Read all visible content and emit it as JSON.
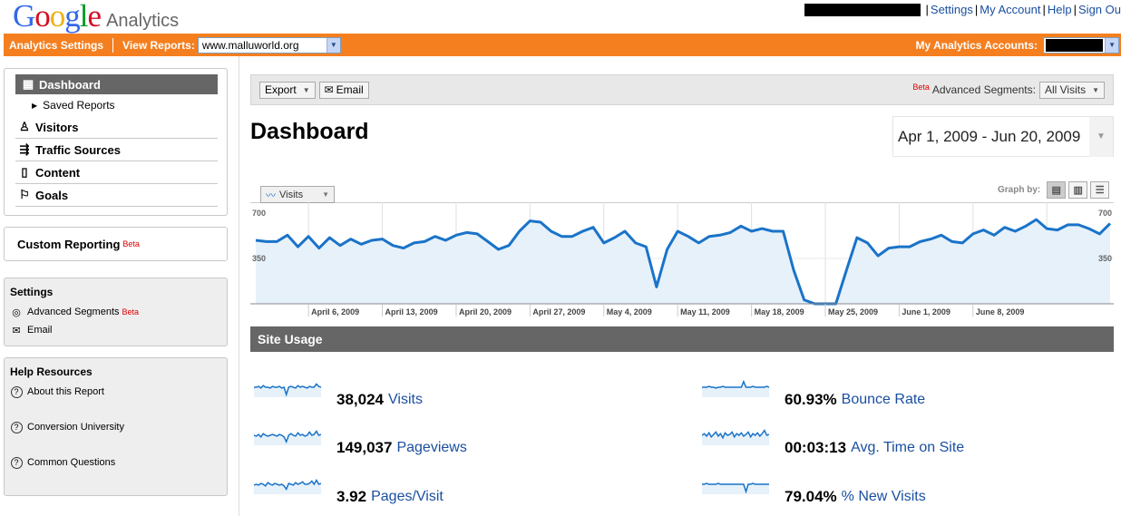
{
  "header": {
    "logo_google": "Google",
    "logo_analytics": "Analytics",
    "links": [
      "Settings",
      "My Account",
      "Help",
      "Sign Ou"
    ]
  },
  "orangebar": {
    "analytics_settings": "Analytics Settings",
    "view_reports": "View Reports:",
    "site_select": "www.malluworld.org",
    "my_accounts": "My Analytics Accounts:"
  },
  "nav": {
    "dashboard": "Dashboard",
    "saved_reports": "Saved Reports",
    "visitors": "Visitors",
    "traffic_sources": "Traffic Sources",
    "content": "Content",
    "goals": "Goals",
    "custom_reporting": "Custom Reporting",
    "beta": "Beta"
  },
  "settings_box": {
    "title": "Settings",
    "advanced_segments": "Advanced Segments",
    "beta": "Beta",
    "email": "Email"
  },
  "help_box": {
    "title": "Help Resources",
    "about": "About this Report",
    "conversion": "Conversion University",
    "questions": "Common Questions"
  },
  "toolbar": {
    "export": "Export",
    "email": "Email",
    "beta": "Beta",
    "advanced_segments": "Advanced Segments:",
    "segment_value": "All Visits"
  },
  "page_title": "Dashboard",
  "date_range": "Apr 1, 2009 - Jun 20, 2009",
  "graph": {
    "metric_tab": "Visits",
    "graph_by": "Graph by:"
  },
  "chart_data": {
    "type": "area",
    "ylim": [
      0,
      700
    ],
    "y_ticks_left": [
      "700",
      "350"
    ],
    "y_ticks_right": [
      "700",
      "350"
    ],
    "x_labels": [
      "April 6, 2009",
      "April 13, 2009",
      "April 20, 2009",
      "April 27, 2009",
      "May 4, 2009",
      "May 11, 2009",
      "May 18, 2009",
      "May 25, 2009",
      "June 1, 2009",
      "June 8, 2009"
    ],
    "series": [
      {
        "values": [
          490,
          480,
          480,
          530,
          440,
          520,
          430,
          510,
          450,
          500,
          460,
          490,
          500,
          450,
          430,
          470,
          480,
          520,
          490,
          530,
          550,
          540,
          480,
          420,
          450,
          560,
          640,
          630,
          560,
          520,
          520,
          560,
          590,
          470,
          510,
          560,
          470,
          440,
          130,
          420,
          560,
          520,
          470,
          520,
          530,
          550,
          600,
          560,
          580,
          560,
          560,
          260,
          30,
          0,
          0,
          0,
          260,
          510,
          470,
          370,
          430,
          440,
          440,
          480,
          500,
          530,
          480,
          470,
          540,
          570,
          530,
          590,
          560,
          600,
          650,
          580,
          570,
          610,
          610,
          580,
          540,
          620
        ]
      }
    ],
    "color": "#1a73c8",
    "fill": "#e6f1fa"
  },
  "site_usage": {
    "title": "Site Usage",
    "metrics": [
      {
        "value": "38,024",
        "label": "Visits"
      },
      {
        "value": "149,037",
        "label": "Pageviews"
      },
      {
        "value": "3.92",
        "label": "Pages/Visit"
      },
      {
        "value": "60.93%",
        "label": "Bounce Rate"
      },
      {
        "value": "00:03:13",
        "label": "Avg. Time on Site"
      },
      {
        "value": "79.04%",
        "label": "% New Visits"
      }
    ]
  }
}
